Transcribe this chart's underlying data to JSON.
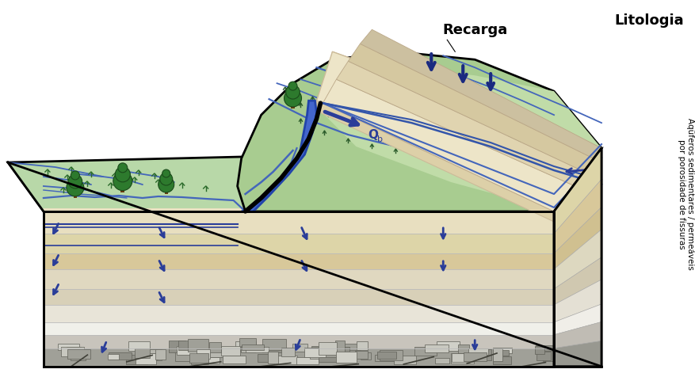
{
  "bg_color": "#ffffff",
  "recarga_label": "Recarga",
  "litologia_label": "Litologia",
  "side_label": "Aqüferos sedimentares / permeáveis\npor porosidade de fissuras",
  "colors": {
    "green_flat": "#b8d8a8",
    "green_hill": "#a8cc90",
    "green_hill_light": "#c0dca8",
    "green_valley": "#90b878",
    "sand1": "#e8dfc0",
    "sand2": "#ddd0a8",
    "sand3": "#d0c090",
    "sand4": "#ccc0a0",
    "sand5": "#e0d8c0",
    "sand6": "#d8d0b8",
    "sand7": "#e8e4d8",
    "gray1": "#c8c8c0",
    "gray2": "#b0b0a8",
    "white_chalky": "#f0f0ec",
    "rock_bg": "#c0beb8",
    "granite_bg": "#a8a8a0",
    "outline": "#000000",
    "arrow_blue": "#2a3d99",
    "stream_blue": "#4466bb",
    "syncline_blue": "#3355aa",
    "tree_green": "#2d7a2d",
    "tree_dark": "#1a4a1a",
    "tree_trunk": "#6b3a10",
    "veg_green": "#2a6a2a"
  }
}
